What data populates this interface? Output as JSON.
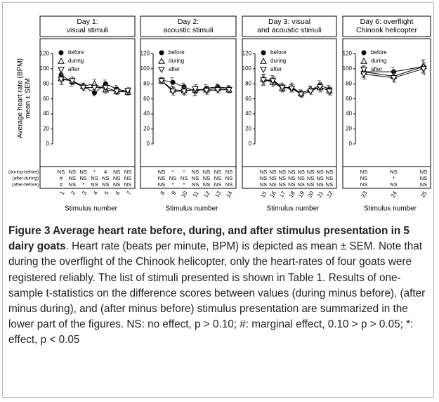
{
  "chart_data": [
    {
      "type": "line",
      "title": [
        "Day 1:",
        "visual stimuli"
      ],
      "ylabel": [
        "Average heart rate (BPM)",
        "mean ± SEM"
      ],
      "xlabel": "Stimulus number",
      "categories": [
        "1",
        "2",
        "3",
        "4",
        "5",
        "6",
        "7"
      ],
      "ylim": [
        -30,
        140
      ],
      "yticks": [
        0,
        20,
        40,
        60,
        80,
        100,
        120
      ],
      "stat_labels": [
        "(during-before)",
        "(after-during)",
        "(after-before)"
      ],
      "series": [
        {
          "name": "before",
          "marker": "circle",
          "color": "#000000",
          "values": [
            92,
            82,
            77,
            68,
            80,
            73,
            70
          ],
          "errors": [
            6,
            5,
            4,
            4,
            5,
            5,
            4
          ]
        },
        {
          "name": "during",
          "marker": "triangle-up",
          "color": "#000000",
          "values": [
            87,
            84,
            77,
            80,
            72,
            70,
            69
          ],
          "errors": [
            7,
            5,
            4,
            6,
            5,
            4,
            4
          ]
        },
        {
          "name": "after",
          "marker": "triangle-down",
          "color": "#000000",
          "values": [
            86,
            84,
            75,
            75,
            75,
            70,
            71
          ],
          "errors": [
            7,
            5,
            4,
            5,
            5,
            4,
            4
          ]
        }
      ],
      "stats": [
        [
          "NS",
          "NS",
          "NS",
          "*",
          "#",
          "NS",
          "NS"
        ],
        [
          "#",
          "NS",
          "NS",
          "NS",
          "NS",
          "NS",
          "NS"
        ],
        [
          "#",
          "NS",
          "*",
          "NS",
          "NS",
          "NS",
          "NS"
        ]
      ]
    },
    {
      "type": "line",
      "title": [
        "Day 2:",
        "acoustic stimuli"
      ],
      "xlabel": "Stimulus number",
      "categories": [
        "8",
        "9",
        "10",
        "11",
        "12",
        "13",
        "14"
      ],
      "ylim": [
        -30,
        140
      ],
      "yticks": [
        0,
        20,
        40,
        60,
        80,
        100,
        120
      ],
      "series": [
        {
          "name": "before",
          "marker": "circle",
          "color": "#000000",
          "values": [
            85,
            82,
            76,
            70,
            74,
            76,
            74
          ],
          "errors": [
            4,
            6,
            5,
            6,
            5,
            4,
            4
          ]
        },
        {
          "name": "during",
          "marker": "triangle-up",
          "color": "#000000",
          "values": [
            84,
            72,
            71,
            72,
            72,
            74,
            72
          ],
          "errors": [
            4,
            5,
            5,
            7,
            5,
            4,
            4
          ]
        },
        {
          "name": "after",
          "marker": "triangle-down",
          "color": "#000000",
          "values": [
            84,
            70,
            70,
            73,
            71,
            72,
            72
          ],
          "errors": [
            4,
            5,
            5,
            6,
            5,
            4,
            4
          ]
        }
      ],
      "stats": [
        [
          "NS",
          "*",
          "*",
          "NS",
          "NS",
          "NS",
          "NS"
        ],
        [
          "NS",
          "NS",
          "NS",
          "NS",
          "NS",
          "NS",
          "NS"
        ],
        [
          "NS",
          "*",
          "*",
          "NS",
          "NS",
          "NS",
          "NS"
        ]
      ]
    },
    {
      "type": "line",
      "title": [
        "Day 3: visual",
        "and acoustic stimuli"
      ],
      "xlabel": "Stimulus number",
      "categories": [
        "15",
        "16",
        "17",
        "18",
        "19",
        "20",
        "21",
        "22"
      ],
      "ylim": [
        -30,
        140
      ],
      "yticks": [
        0,
        20,
        40,
        60,
        80,
        100,
        120
      ],
      "series": [
        {
          "name": "before",
          "marker": "circle",
          "color": "#000000",
          "values": [
            85,
            85,
            76,
            74,
            68,
            72,
            78,
            73
          ],
          "errors": [
            7,
            6,
            5,
            5,
            4,
            4,
            6,
            5
          ]
        },
        {
          "name": "during",
          "marker": "triangle-up",
          "color": "#000000",
          "values": [
            86,
            82,
            74,
            76,
            67,
            73,
            75,
            71
          ],
          "errors": [
            7,
            6,
            5,
            5,
            4,
            4,
            6,
            5
          ]
        },
        {
          "name": "after",
          "marker": "triangle-down",
          "color": "#000000",
          "values": [
            85,
            84,
            75,
            74,
            66,
            70,
            76,
            70
          ],
          "errors": [
            7,
            6,
            5,
            5,
            4,
            4,
            6,
            5
          ]
        }
      ],
      "stats": [
        [
          "NS",
          "NS",
          "NS",
          "NS",
          "NS",
          "NS",
          "NS",
          "NS"
        ],
        [
          "NS",
          "NS",
          "NS",
          "NS",
          "NS",
          "NS",
          "NS",
          "NS"
        ],
        [
          "NS",
          "NS",
          "NS",
          "NS",
          "NS",
          "NS",
          "NS",
          "NS"
        ]
      ]
    },
    {
      "type": "line",
      "title": [
        "Day 6: overflight",
        "Chinook helicopter"
      ],
      "xlabel": "Stimulus number",
      "categories": [
        "23",
        "24",
        "25"
      ],
      "ylim": [
        -30,
        140
      ],
      "yticks": [
        0,
        20,
        40,
        60,
        80,
        100,
        120
      ],
      "series": [
        {
          "name": "before",
          "marker": "circle",
          "color": "#000000",
          "values": [
            96,
            96,
            103
          ],
          "errors": [
            7,
            6,
            8
          ]
        },
        {
          "name": "during",
          "marker": "triangle-up",
          "color": "#000000",
          "values": [
            96,
            90,
            103
          ],
          "errors": [
            8,
            7,
            9
          ]
        },
        {
          "name": "after",
          "marker": "triangle-down",
          "color": "#000000",
          "values": [
            93,
            88,
            100
          ],
          "errors": [
            7,
            6,
            8
          ]
        }
      ],
      "stats": [
        [
          "NS",
          "NS",
          "NS"
        ],
        [
          "NS",
          "*",
          "NS"
        ],
        [
          "NS",
          "NS",
          "NS"
        ]
      ]
    }
  ],
  "caption": {
    "bold": "Figure 3 Average heart rate before, during, and after stimulus presentation in 5 dairy goats",
    "text": ". Heart rate (beats per minute, BPM) is depicted as mean ± SEM. Note that during the overflight of the Chinook helicopter, only the heart-rates of four goats were registered reliably. The list of stimuli presented is shown in Table 1. Results of one-sample t-statistics on the difference scores between values (during minus before), (after minus during), and (after minus before) stimulus presentation are summarized in the lower part of the figures. NS: no effect, p > 0.10; #: marginal effect, 0.10 > p > 0.05; *: effect, p < 0.05"
  }
}
